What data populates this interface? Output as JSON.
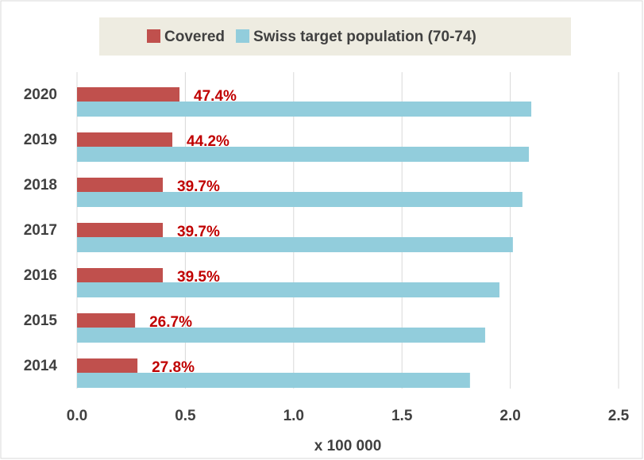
{
  "chart_data": {
    "type": "bar",
    "orientation": "horizontal",
    "categories": [
      "2020",
      "2019",
      "2018",
      "2017",
      "2016",
      "2015",
      "2014"
    ],
    "series": [
      {
        "name": "Covered",
        "color": "#c0504d",
        "values": [
          0.473,
          0.44,
          0.396,
          0.396,
          0.396,
          0.268,
          0.279
        ]
      },
      {
        "name": "Swiss target population (70-74)",
        "color": "#92cddc",
        "values": [
          2.097,
          2.086,
          2.056,
          2.012,
          1.95,
          1.884,
          1.814
        ]
      }
    ],
    "annotations": [
      "47.4%",
      "44.2%",
      "39.7%",
      "39.7%",
      "39.5%",
      "26.7%",
      "27.8%"
    ],
    "annotation_color": "#c00000",
    "x_label": "x 100 000",
    "xlim": [
      0,
      2.5
    ],
    "xticks": [
      {
        "value": 0,
        "label": "0.0"
      },
      {
        "value": 0.5,
        "label": "0.5"
      },
      {
        "value": 1,
        "label": "1.0"
      },
      {
        "value": 1.5,
        "label": "1.5"
      },
      {
        "value": 2,
        "label": "2.0"
      },
      {
        "value": 2.5,
        "label": "2.5"
      }
    ],
    "grid": true
  }
}
